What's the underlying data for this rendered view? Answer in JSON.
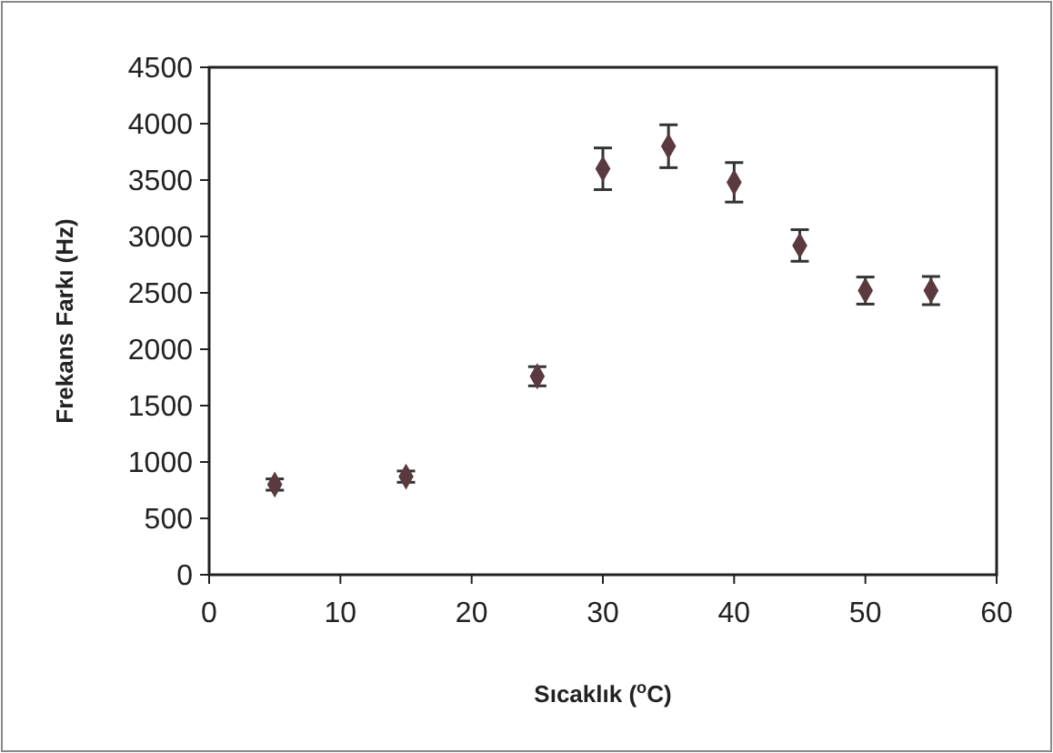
{
  "chart_data": {
    "type": "scatter",
    "xlabel": "Sıcaklık ($^{o}$C)",
    "ylabel": "Frekans Farkı (Hz)",
    "x": [
      5,
      15,
      25,
      30,
      35,
      40,
      45,
      50,
      55
    ],
    "series": [
      {
        "color": "#5a3a3e",
        "values": [
          800,
          870,
          1760,
          3600,
          3800,
          3480,
          2920,
          2520,
          2520
        ],
        "errors": [
          50,
          50,
          85,
          185,
          190,
          175,
          140,
          120,
          125
        ]
      }
    ],
    "xlim": [
      0,
      60
    ],
    "xticks": [
      0,
      10,
      20,
      30,
      40,
      50,
      60
    ],
    "ylim": [
      0,
      4500
    ],
    "yticks": [
      0,
      500,
      1000,
      1500,
      2000,
      2500,
      3000,
      3500,
      4000,
      4500
    ],
    "grid": false,
    "marker": "diamond"
  }
}
